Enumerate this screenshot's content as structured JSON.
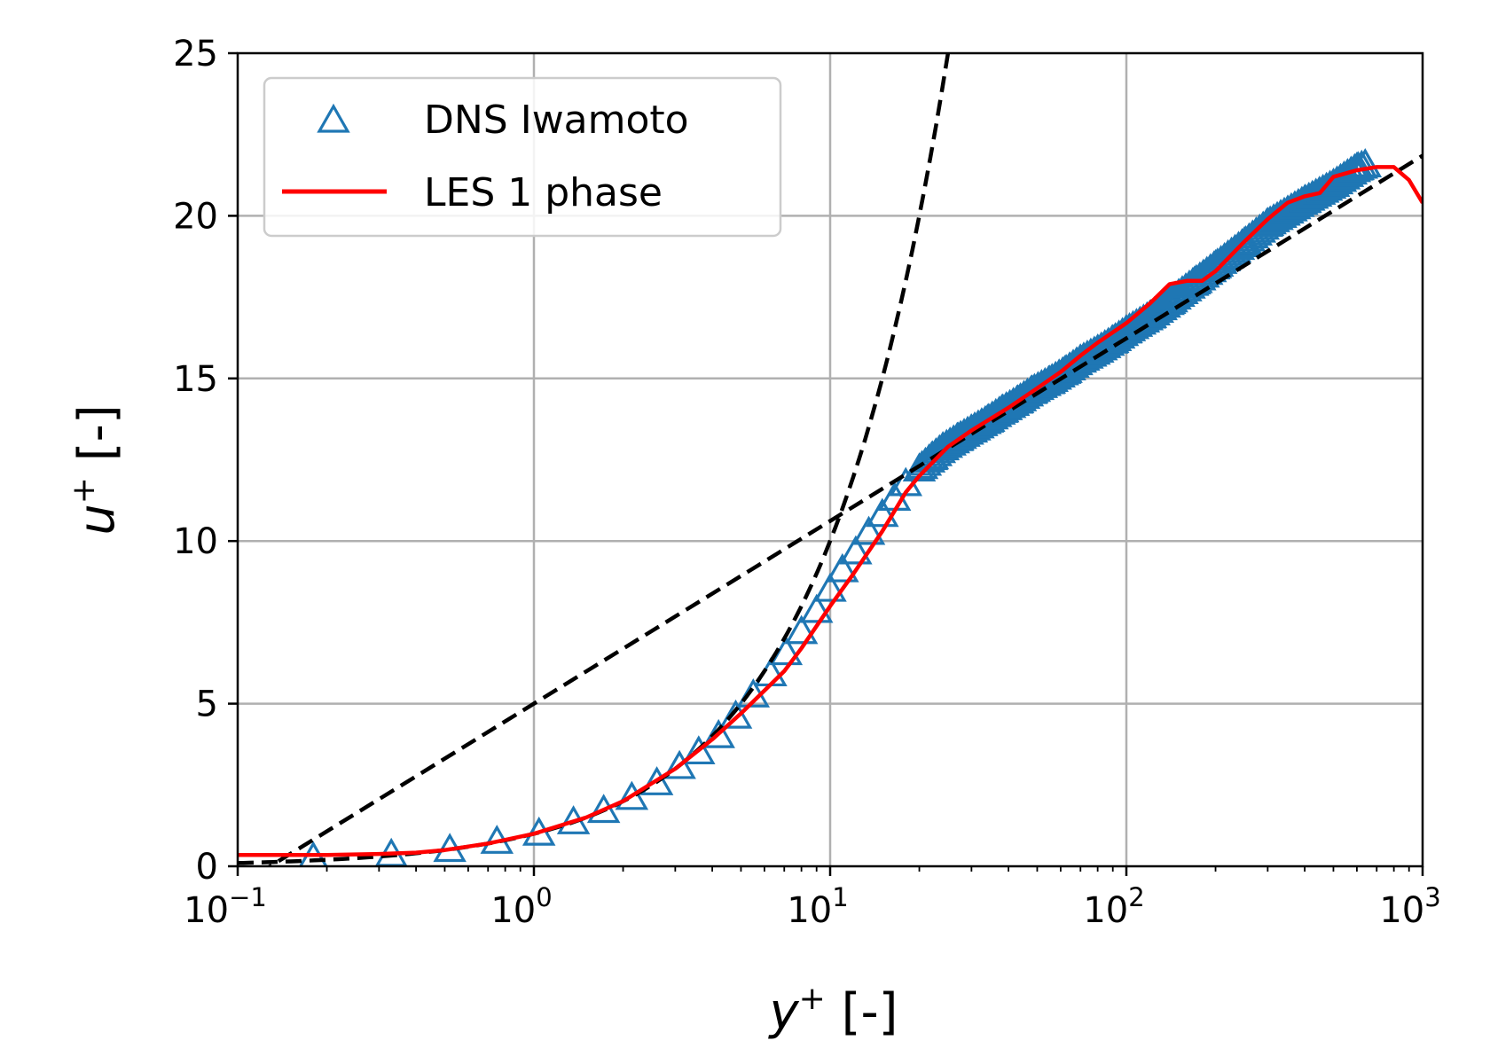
{
  "chart_data": {
    "type": "scatter",
    "title": "",
    "xlabel": {
      "var": "y",
      "sup": "+",
      "unit": " [-]"
    },
    "ylabel": {
      "var": "u",
      "sup": "+",
      "unit": " [-]"
    },
    "xscale": "log",
    "xlim": [
      0.1,
      1000
    ],
    "ylim": [
      0,
      25
    ],
    "grid": true,
    "legend_position": "top-left",
    "x_ticks": [
      {
        "base": "10",
        "exp": "−1"
      },
      {
        "base": "10",
        "exp": "0"
      },
      {
        "base": "10",
        "exp": "1"
      },
      {
        "base": "10",
        "exp": "2"
      },
      {
        "base": "10",
        "exp": "3"
      }
    ],
    "y_ticks": [
      "0",
      "5",
      "10",
      "15",
      "20",
      "25"
    ],
    "series": [
      {
        "name": "DNS Iwamoto",
        "kind": "markers",
        "marker": "triangle-open",
        "color": "#1f77b4",
        "sample_count": 300,
        "x": [
          0.18,
          0.33,
          0.52,
          0.75,
          1.04,
          1.36,
          1.72,
          2.14,
          2.6,
          3.1,
          3.6,
          4.2,
          4.8,
          5.5,
          6.3,
          7.1,
          8.0,
          9.0,
          10.0,
          11.0,
          12.2,
          13.5,
          15.0,
          16.5,
          18.0,
          20.0,
          22.0,
          24.0,
          27.0,
          30.0,
          34.0,
          38.0,
          43.0,
          48.0,
          55.0,
          62.0,
          70.0,
          80.0,
          90.0,
          100.0,
          120.0,
          140.0,
          170.0,
          200.0,
          250.0,
          300.0,
          400.0,
          500.0,
          600.0,
          640.0
        ],
        "y": [
          0.2,
          0.3,
          0.45,
          0.7,
          0.95,
          1.3,
          1.65,
          2.05,
          2.5,
          3.0,
          3.45,
          3.95,
          4.55,
          5.2,
          5.85,
          6.5,
          7.15,
          7.8,
          8.45,
          9.05,
          9.6,
          10.2,
          10.75,
          11.25,
          11.7,
          12.15,
          12.5,
          12.8,
          13.1,
          13.35,
          13.65,
          13.95,
          14.25,
          14.55,
          14.85,
          15.15,
          15.5,
          15.8,
          16.1,
          16.4,
          16.85,
          17.3,
          17.9,
          18.4,
          19.1,
          19.7,
          20.4,
          20.9,
          21.4,
          21.5
        ]
      },
      {
        "name": "LES 1 phase",
        "kind": "line",
        "color": "#ff0000",
        "x": [
          0.1,
          0.2,
          0.3,
          0.4,
          0.5,
          0.7,
          1.0,
          1.5,
          2.0,
          3.0,
          4.0,
          5.0,
          6.0,
          7.0,
          8.0,
          10.0,
          12.0,
          15.0,
          18.0,
          20.0,
          25.0,
          30.0,
          40.0,
          50.0,
          60.0,
          70.0,
          80.0,
          100.0,
          120.0,
          140.0,
          160.0,
          180.0,
          200.0,
          250.0,
          300.0,
          350.0,
          400.0,
          450.0,
          500.0,
          600.0,
          700.0,
          800.0,
          900.0,
          1000.0
        ],
        "y": [
          0.35,
          0.35,
          0.38,
          0.42,
          0.5,
          0.7,
          1.0,
          1.5,
          2.0,
          3.0,
          3.9,
          4.7,
          5.4,
          6.0,
          6.7,
          8.0,
          9.0,
          10.3,
          11.5,
          12.0,
          12.9,
          13.4,
          14.1,
          14.7,
          15.2,
          15.7,
          16.1,
          16.7,
          17.3,
          17.9,
          18.0,
          18.0,
          18.3,
          19.2,
          19.9,
          20.4,
          20.6,
          20.7,
          21.2,
          21.4,
          21.5,
          21.5,
          21.1,
          20.4
        ]
      }
    ],
    "reference_lines": [
      {
        "name": "viscous sublayer u+ = y+",
        "style": "dashed",
        "color": "#000000",
        "x": [
          0.1,
          25.0
        ],
        "y": [
          0.1,
          25.0
        ]
      },
      {
        "name": "log law u+ = ln(y+)/0.41 + 5.0",
        "style": "dashed",
        "color": "#000000",
        "x": [
          0.1,
          1000.0
        ],
        "y": [
          -0.616,
          21.85
        ]
      }
    ]
  }
}
